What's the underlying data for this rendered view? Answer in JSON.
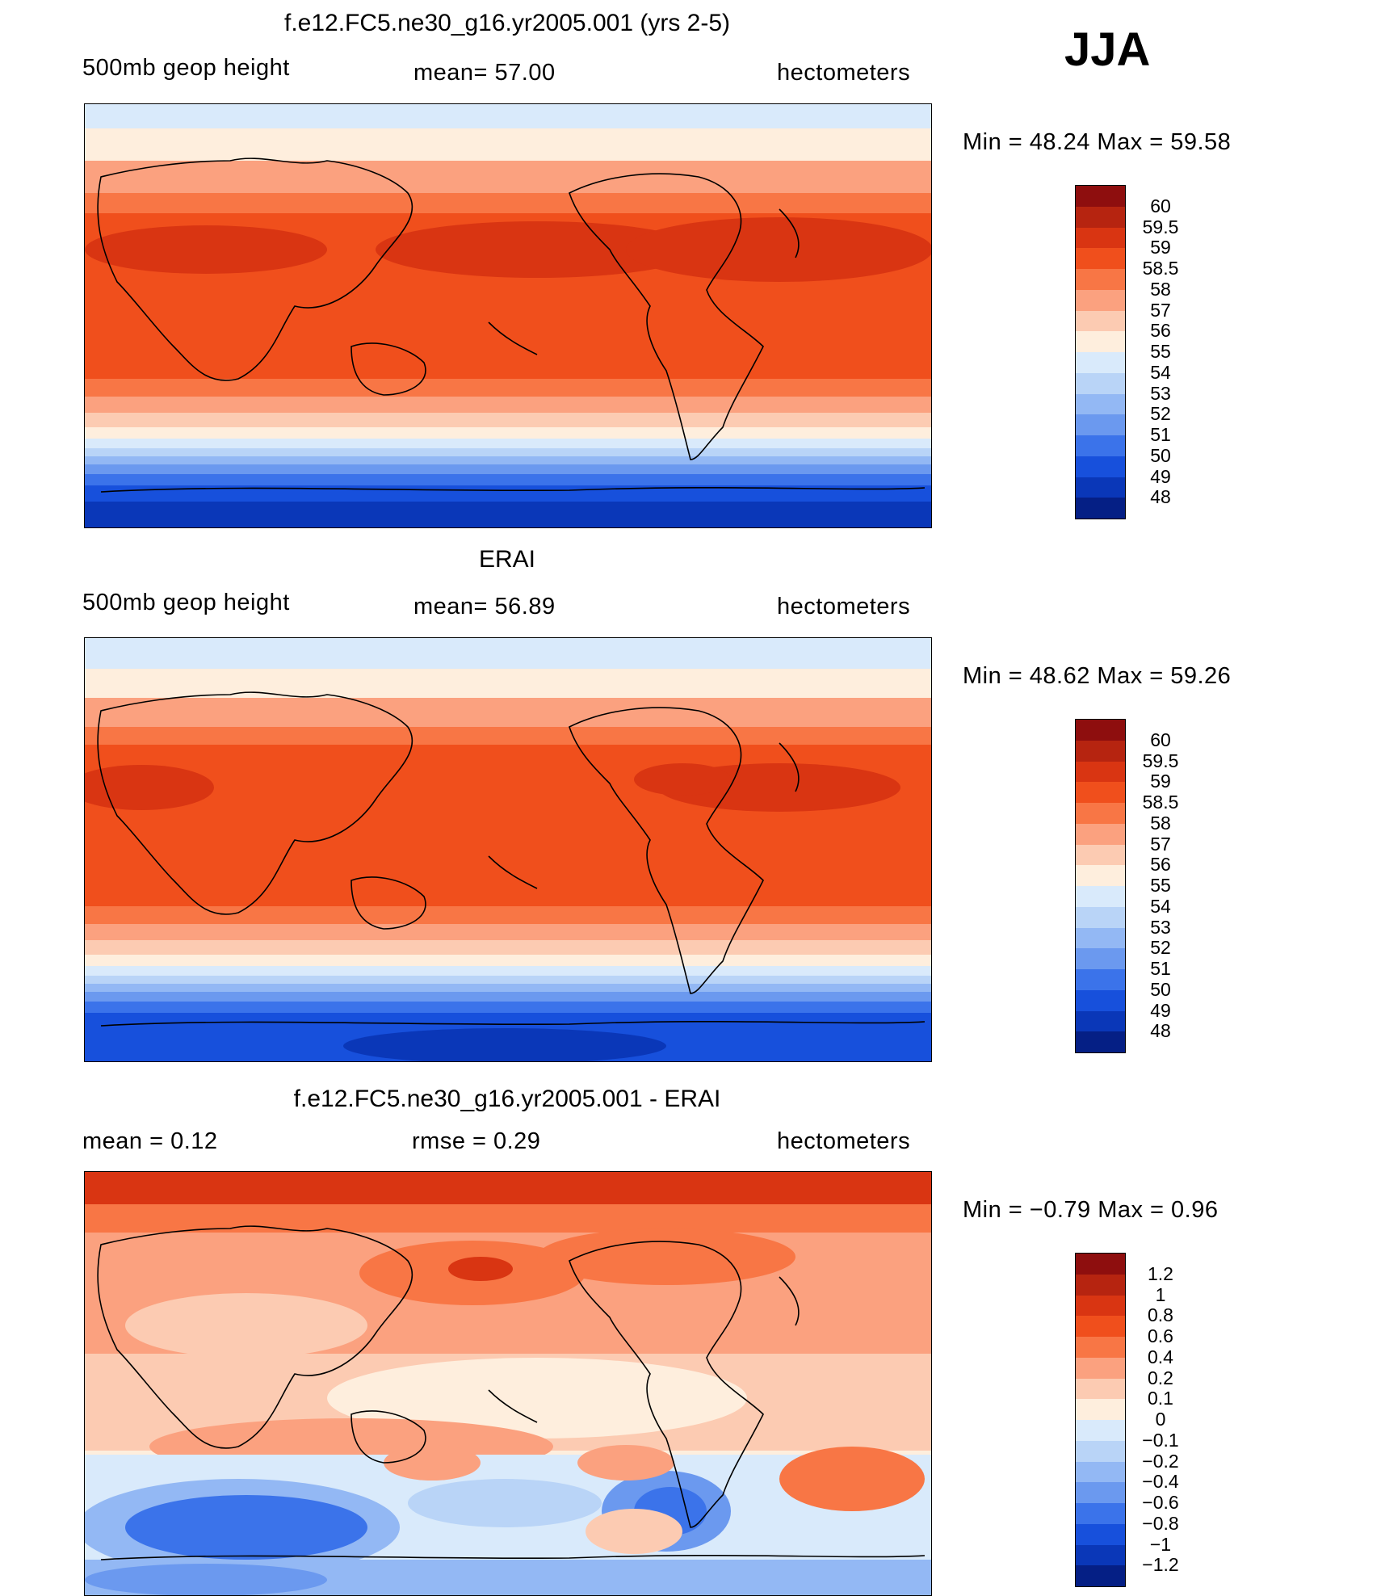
{
  "season": "JJA",
  "units": "hectometers",
  "panels": [
    {
      "title": "f.e12.FC5.ne30_g16.yr2005.001 (yrs 2-5)",
      "left_label": "500mb  geop  height",
      "center_label": "mean=   57.00",
      "right_label": "hectometers",
      "stats": "Min  =    48.24  Max  =    59.58",
      "legend_levels": [
        "60",
        "59.5",
        "59",
        "58.5",
        "58",
        "57",
        "56",
        "55",
        "54",
        "53",
        "52",
        "51",
        "50",
        "49",
        "48"
      ],
      "legend_colors": [
        "#8e0e0e",
        "#b62410",
        "#d93512",
        "#f04f1c",
        "#f87645",
        "#fba17f",
        "#fccbb2",
        "#feeedd",
        "#d9eafb",
        "#b9d4f7",
        "#93b8f4",
        "#6b99ef",
        "#3b73ea",
        "#1750dc",
        "#0a37b8",
        "#051f85"
      ]
    },
    {
      "title": "ERAI",
      "left_label": "500mb  geop  height",
      "center_label": "mean=   56.89",
      "right_label": "hectometers",
      "stats": "Min  =    48.62  Max  =    59.26",
      "legend_levels": [
        "60",
        "59.5",
        "59",
        "58.5",
        "58",
        "57",
        "56",
        "55",
        "54",
        "53",
        "52",
        "51",
        "50",
        "49",
        "48"
      ],
      "legend_colors": [
        "#8e0e0e",
        "#b62410",
        "#d93512",
        "#f04f1c",
        "#f87645",
        "#fba17f",
        "#fccbb2",
        "#feeedd",
        "#d9eafb",
        "#b9d4f7",
        "#93b8f4",
        "#6b99ef",
        "#3b73ea",
        "#1750dc",
        "#0a37b8",
        "#051f85"
      ]
    },
    {
      "title": "f.e12.FC5.ne30_g16.yr2005.001 - ERAI",
      "left_label": "mean  =      0.12",
      "center_label": "rmse  =      0.29",
      "right_label": "hectometers",
      "stats": "Min  =    −0.79  Max  =      0.96",
      "legend_levels": [
        "1.2",
        "1",
        "0.8",
        "0.6",
        "0.4",
        "0.2",
        "0.1",
        "0",
        "−0.1",
        "−0.2",
        "−0.4",
        "−0.6",
        "−0.8",
        "−1",
        "−1.2"
      ],
      "legend_colors": [
        "#8e0e0e",
        "#b62410",
        "#d93512",
        "#f04f1c",
        "#f87645",
        "#fba17f",
        "#fccbb2",
        "#feeedd",
        "#d9eafb",
        "#b9d4f7",
        "#93b8f4",
        "#6b99ef",
        "#3b73ea",
        "#1750dc",
        "#0a37b8",
        "#051f85"
      ]
    }
  ]
}
